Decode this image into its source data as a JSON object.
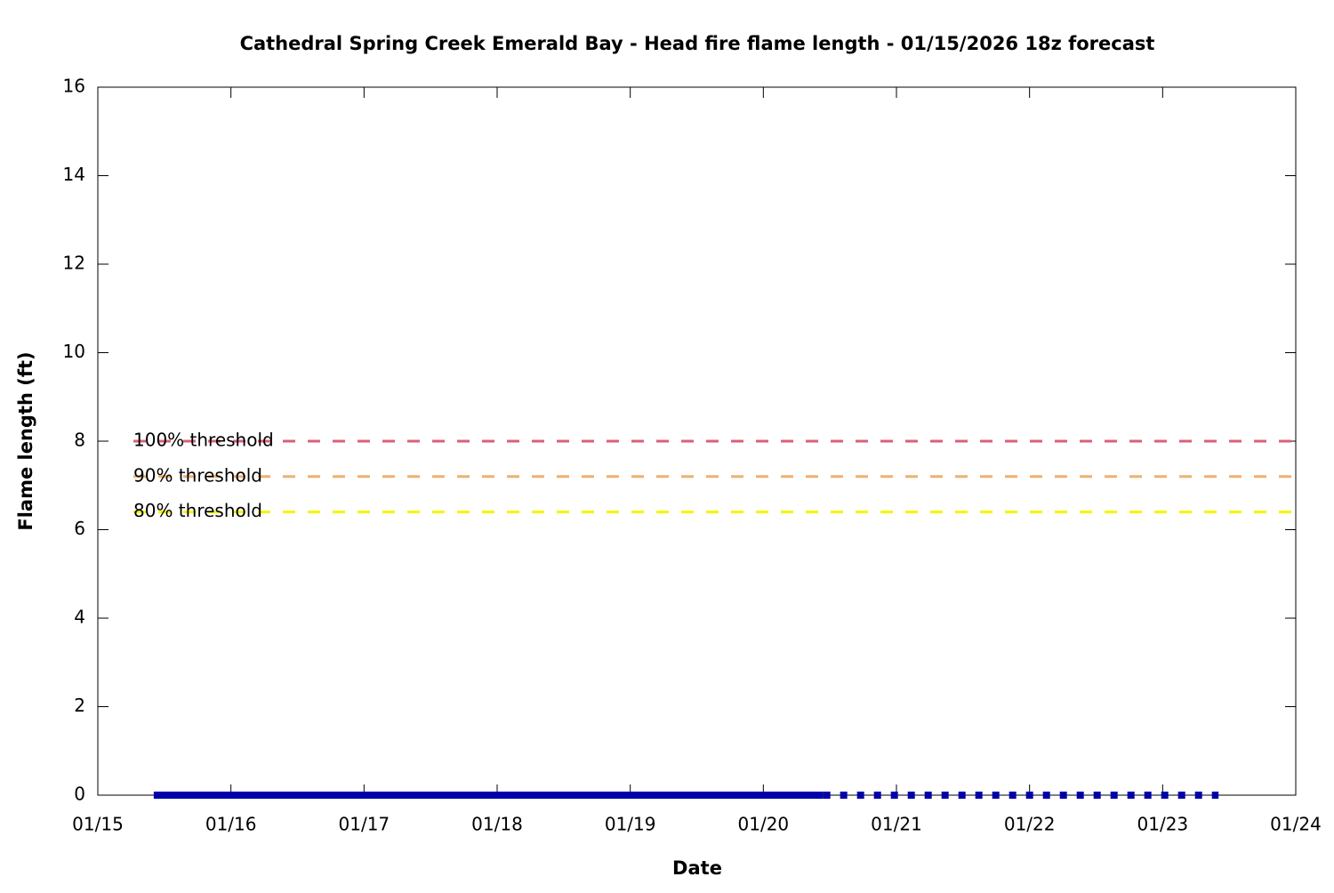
{
  "chart_data": {
    "type": "line",
    "title": "Cathedral Spring Creek Emerald Bay - Head fire flame length - 01/15/2026 18z forecast",
    "x_label": "Date",
    "y_label": "Flame length (ft)",
    "xlim": [
      0,
      9
    ],
    "xticks": [
      {
        "value": 0,
        "label": "01/15"
      },
      {
        "value": 1,
        "label": "01/16"
      },
      {
        "value": 2,
        "label": "01/17"
      },
      {
        "value": 3,
        "label": "01/18"
      },
      {
        "value": 4,
        "label": "01/19"
      },
      {
        "value": 5,
        "label": "01/20"
      },
      {
        "value": 6,
        "label": "01/21"
      },
      {
        "value": 7,
        "label": "01/22"
      },
      {
        "value": 8,
        "label": "01/23"
      },
      {
        "value": 9,
        "label": "01/24"
      }
    ],
    "ylim": [
      0,
      16
    ],
    "yticks": [
      0,
      2,
      4,
      6,
      8,
      10,
      12,
      14,
      16
    ],
    "series": [
      {
        "color": "#0000aa",
        "style": "solid",
        "x": [
          0.42,
          5.45
        ],
        "values": [
          0,
          0
        ]
      },
      {
        "color": "#0000aa",
        "style": "dotted",
        "x": [
          5.45,
          8.42
        ],
        "values": [
          0,
          0
        ]
      }
    ],
    "thresholds": [
      {
        "label": "100% threshold",
        "value": 8,
        "color": "#d9607a"
      },
      {
        "label": "90% threshold",
        "value": 7.2,
        "color": "#f0b070"
      },
      {
        "label": "80% threshold",
        "value": 6.4,
        "color": "#f5f500"
      }
    ]
  }
}
